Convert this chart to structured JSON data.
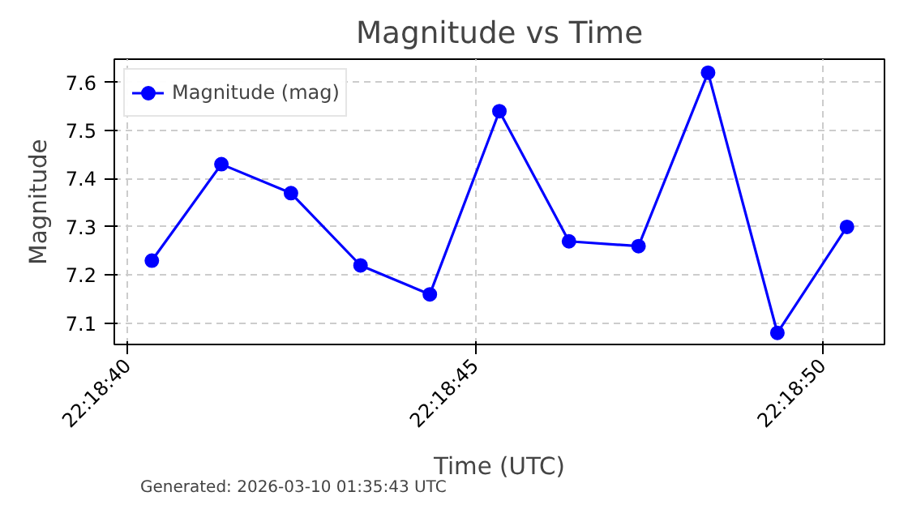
{
  "chart_data": {
    "type": "line",
    "title": "Magnitude vs Time",
    "xlabel": "Time (UTC)",
    "ylabel": "Magnitude",
    "annotations": [
      "Generated: 2026-03-10 01:35:43 UTC"
    ],
    "x": [
      22.311208,
      22.311486,
      22.311764,
      22.312042,
      22.312319,
      22.312597,
      22.312875,
      22.313153,
      22.313431,
      22.313708,
      22.313986
    ],
    "series": [
      {
        "name": "Magnitude (mag)",
        "color": "#0000ff",
        "values": [
          7.23,
          7.43,
          7.37,
          7.22,
          7.16,
          7.54,
          7.27,
          7.26,
          7.62,
          7.08,
          7.3
        ]
      }
    ],
    "xlim": [
      22.311058,
      22.314136
    ],
    "ylim": [
      7.056,
      7.648
    ],
    "xticks": [
      {
        "value": 22.311111,
        "label": "22:18:40"
      },
      {
        "value": 22.3125,
        "label": "22:18:45"
      },
      {
        "value": 22.313889,
        "label": "22:18:50"
      }
    ],
    "yticks": [
      7.1,
      7.2,
      7.3,
      7.4,
      7.5,
      7.6
    ],
    "grid": true,
    "legend": "top left",
    "marker": "circle",
    "line_style": "solid"
  }
}
